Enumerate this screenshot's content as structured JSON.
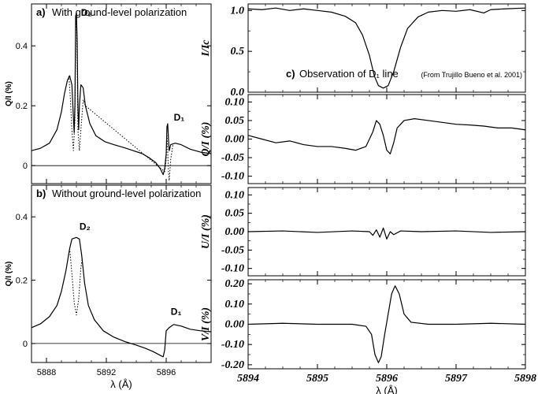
{
  "chart_data": [
    {
      "id": "a",
      "type": "line",
      "panel_label": "a)",
      "title": "With ground-level polarization",
      "ylabel": "Q/I (%)",
      "xlim": [
        5887,
        5899
      ],
      "ylim": [
        -0.06,
        0.54
      ],
      "yticks": [
        {
          "v": 0,
          "label": "0"
        },
        {
          "v": 0.2,
          "label": "0.2"
        },
        {
          "v": 0.4,
          "label": "0.4"
        }
      ],
      "xticks": [
        5888,
        5892,
        5896
      ],
      "zero_line": true,
      "line_labels": [
        {
          "text": "D₂",
          "x": 5890.2,
          "y": 0.5
        },
        {
          "text": "D₁",
          "x": 5896.4,
          "y": 0.15
        }
      ],
      "series": [
        {
          "style": "solid",
          "points": [
            [
              5887,
              0.05
            ],
            [
              5887.6,
              0.058
            ],
            [
              5888.2,
              0.075
            ],
            [
              5888.7,
              0.12
            ],
            [
              5889.0,
              0.18
            ],
            [
              5889.2,
              0.24
            ],
            [
              5889.4,
              0.285
            ],
            [
              5889.55,
              0.3
            ],
            [
              5889.7,
              0.27
            ],
            [
              5889.8,
              0.16
            ],
            [
              5889.85,
              0.11
            ],
            [
              5889.9,
              0.2
            ],
            [
              5889.95,
              0.5
            ],
            [
              5890.0,
              0.51
            ],
            [
              5890.05,
              0.42
            ],
            [
              5890.1,
              0.2
            ],
            [
              5890.15,
              0.12
            ],
            [
              5890.2,
              0.2
            ],
            [
              5890.3,
              0.27
            ],
            [
              5890.45,
              0.26
            ],
            [
              5890.6,
              0.2
            ],
            [
              5890.9,
              0.14
            ],
            [
              5891.3,
              0.1
            ],
            [
              5891.9,
              0.08
            ],
            [
              5892.5,
              0.07
            ],
            [
              5893.2,
              0.06
            ],
            [
              5893.8,
              0.05
            ],
            [
              5894.4,
              0.04
            ],
            [
              5894.9,
              0.025
            ],
            [
              5895.3,
              0.01
            ],
            [
              5895.6,
              -0.01
            ],
            [
              5895.8,
              -0.03
            ],
            [
              5895.9,
              -0.01
            ],
            [
              5896.0,
              0.04
            ],
            [
              5896.05,
              0.13
            ],
            [
              5896.1,
              0.14
            ],
            [
              5896.15,
              0.09
            ],
            [
              5896.2,
              0.05
            ],
            [
              5896.3,
              0.07
            ],
            [
              5896.6,
              0.075
            ],
            [
              5897.0,
              0.07
            ],
            [
              5897.6,
              0.055
            ],
            [
              5898.3,
              0.045
            ],
            [
              5899,
              0.04
            ]
          ]
        },
        {
          "style": "dotted",
          "points": [
            [
              5889.5,
              0.3
            ],
            [
              5889.6,
              0.22
            ],
            [
              5889.7,
              0.12
            ],
            [
              5889.8,
              0.05
            ],
            [
              5889.9,
              0.15
            ],
            [
              5889.95,
              0.45
            ],
            [
              5890.0,
              0.5
            ],
            [
              5890.05,
              0.35
            ],
            [
              5890.1,
              0.12
            ],
            [
              5890.2,
              0.05
            ],
            [
              5890.3,
              0.12
            ],
            [
              5890.45,
              0.22
            ],
            [
              5890.6,
              0.2
            ],
            [
              5895.9,
              -0.02
            ],
            [
              5896.0,
              0.02
            ],
            [
              5896.05,
              0.1
            ],
            [
              5896.1,
              0.05
            ],
            [
              5896.15,
              -0.02
            ],
            [
              5896.2,
              -0.05
            ],
            [
              5896.3,
              0.02
            ],
            [
              5896.45,
              0.07
            ]
          ]
        }
      ]
    },
    {
      "id": "b",
      "type": "line",
      "panel_label": "b)",
      "title": "Without ground-level polarization",
      "ylabel": "Q/I (%)",
      "xlabel": "λ (Å)",
      "xlim": [
        5887,
        5899
      ],
      "ylim": [
        -0.06,
        0.5
      ],
      "yticks": [
        {
          "v": 0,
          "label": "0"
        },
        {
          "v": 0.2,
          "label": "0.2"
        },
        {
          "v": 0.4,
          "label": "0.4"
        }
      ],
      "xticks": [
        5888,
        5892,
        5896
      ],
      "zero_line": true,
      "line_labels": [
        {
          "text": "D₂",
          "x": 5890.1,
          "y": 0.36
        },
        {
          "text": "D₁",
          "x": 5896.2,
          "y": 0.09
        }
      ],
      "series": [
        {
          "style": "solid",
          "points": [
            [
              5887,
              0.05
            ],
            [
              5887.6,
              0.062
            ],
            [
              5888.2,
              0.085
            ],
            [
              5888.7,
              0.12
            ],
            [
              5889.0,
              0.165
            ],
            [
              5889.3,
              0.23
            ],
            [
              5889.55,
              0.3
            ],
            [
              5889.7,
              0.33
            ],
            [
              5890.0,
              0.335
            ],
            [
              5890.2,
              0.33
            ],
            [
              5890.35,
              0.28
            ],
            [
              5890.55,
              0.19
            ],
            [
              5890.8,
              0.12
            ],
            [
              5891.2,
              0.075
            ],
            [
              5891.8,
              0.04
            ],
            [
              5892.5,
              0.02
            ],
            [
              5893.3,
              0.005
            ],
            [
              5894.0,
              -0.005
            ],
            [
              5894.6,
              -0.015
            ],
            [
              5895.1,
              -0.025
            ],
            [
              5895.5,
              -0.035
            ],
            [
              5895.7,
              -0.04
            ],
            [
              5895.8,
              -0.042
            ],
            [
              5895.9,
              -0.02
            ],
            [
              5896.0,
              0.04
            ],
            [
              5896.2,
              0.05
            ],
            [
              5896.5,
              0.06
            ],
            [
              5897.0,
              0.055
            ],
            [
              5897.6,
              0.045
            ],
            [
              5898.3,
              0.04
            ],
            [
              5899,
              0.037
            ]
          ]
        },
        {
          "style": "dotted",
          "points": [
            [
              5889.55,
              0.3
            ],
            [
              5889.7,
              0.22
            ],
            [
              5889.85,
              0.13
            ],
            [
              5890.0,
              0.09
            ],
            [
              5890.15,
              0.14
            ],
            [
              5890.3,
              0.24
            ],
            [
              5890.4,
              0.27
            ]
          ]
        }
      ]
    },
    {
      "id": "c1",
      "type": "line",
      "panel_label": "c)",
      "title": "Observation of D₁ line",
      "annotation": "(From Trujillo Bueno et al. 2001)",
      "ylabel": "I/Ic",
      "xlim": [
        5894,
        5898
      ],
      "ylim": [
        0,
        1.08
      ],
      "yticks": [
        {
          "v": 0,
          "label": "0.0"
        },
        {
          "v": 0.5,
          "label": "0.5"
        },
        {
          "v": 1.0,
          "label": "1.0"
        }
      ],
      "xticks": [
        5894,
        5895,
        5896,
        5897,
        5898
      ],
      "series": [
        {
          "style": "solid",
          "points": [
            [
              5894,
              1.02
            ],
            [
              5894.2,
              1.01
            ],
            [
              5894.4,
              1.03
            ],
            [
              5894.6,
              1.0
            ],
            [
              5894.8,
              1.02
            ],
            [
              5895.0,
              1.0
            ],
            [
              5895.2,
              0.98
            ],
            [
              5895.4,
              0.93
            ],
            [
              5895.55,
              0.85
            ],
            [
              5895.65,
              0.7
            ],
            [
              5895.75,
              0.45
            ],
            [
              5895.82,
              0.2
            ],
            [
              5895.88,
              0.08
            ],
            [
              5895.95,
              0.05
            ],
            [
              5896.02,
              0.08
            ],
            [
              5896.1,
              0.25
            ],
            [
              5896.2,
              0.55
            ],
            [
              5896.3,
              0.78
            ],
            [
              5896.45,
              0.92
            ],
            [
              5896.6,
              0.98
            ],
            [
              5896.8,
              1.0
            ],
            [
              5897.0,
              0.99
            ],
            [
              5897.2,
              1.01
            ],
            [
              5897.4,
              0.97
            ],
            [
              5897.5,
              1.01
            ],
            [
              5897.7,
              1.02
            ],
            [
              5898,
              1.03
            ]
          ]
        }
      ]
    },
    {
      "id": "c2",
      "type": "line",
      "ylabel": "Q/I (%)",
      "xlim": [
        5894,
        5898
      ],
      "ylim": [
        -0.12,
        0.12
      ],
      "yticks": [
        {
          "v": -0.1,
          "label": "-0.10"
        },
        {
          "v": -0.05,
          "label": "-0.05"
        },
        {
          "v": 0,
          "label": "0.00"
        },
        {
          "v": 0.05,
          "label": "0.05"
        },
        {
          "v": 0.1,
          "label": "0.10"
        }
      ],
      "xticks": [
        5894,
        5895,
        5896,
        5897,
        5898
      ],
      "series": [
        {
          "style": "solid",
          "points": [
            [
              5894,
              0.01
            ],
            [
              5894.2,
              0.0
            ],
            [
              5894.4,
              -0.01
            ],
            [
              5894.6,
              -0.005
            ],
            [
              5894.8,
              -0.015
            ],
            [
              5895.0,
              -0.02
            ],
            [
              5895.2,
              -0.02
            ],
            [
              5895.4,
              -0.025
            ],
            [
              5895.55,
              -0.03
            ],
            [
              5895.7,
              -0.02
            ],
            [
              5895.8,
              0.02
            ],
            [
              5895.85,
              0.05
            ],
            [
              5895.9,
              0.04
            ],
            [
              5895.95,
              0.01
            ],
            [
              5896.0,
              -0.03
            ],
            [
              5896.05,
              -0.04
            ],
            [
              5896.1,
              -0.01
            ],
            [
              5896.15,
              0.03
            ],
            [
              5896.25,
              0.05
            ],
            [
              5896.4,
              0.055
            ],
            [
              5896.6,
              0.05
            ],
            [
              5896.8,
              0.045
            ],
            [
              5897.0,
              0.04
            ],
            [
              5897.2,
              0.038
            ],
            [
              5897.4,
              0.035
            ],
            [
              5897.6,
              0.03
            ],
            [
              5897.8,
              0.03
            ],
            [
              5898,
              0.025
            ]
          ]
        }
      ]
    },
    {
      "id": "c3",
      "type": "line",
      "ylabel": "U/I (%)",
      "xlim": [
        5894,
        5898
      ],
      "ylim": [
        -0.12,
        0.12
      ],
      "yticks": [
        {
          "v": -0.1,
          "label": "-0.10"
        },
        {
          "v": -0.05,
          "label": "-0.05"
        },
        {
          "v": 0,
          "label": "0.00"
        },
        {
          "v": 0.05,
          "label": "0.05"
        },
        {
          "v": 0.1,
          "label": "0.10"
        }
      ],
      "xticks": [
        5894,
        5895,
        5896,
        5897,
        5898
      ],
      "series": [
        {
          "style": "solid",
          "points": [
            [
              5894,
              0.0
            ],
            [
              5894.5,
              0.002
            ],
            [
              5895.0,
              -0.002
            ],
            [
              5895.5,
              0.002
            ],
            [
              5895.75,
              0.0
            ],
            [
              5895.8,
              -0.01
            ],
            [
              5895.85,
              0.005
            ],
            [
              5895.9,
              -0.015
            ],
            [
              5895.95,
              0.01
            ],
            [
              5896.0,
              -0.02
            ],
            [
              5896.05,
              0.0
            ],
            [
              5896.1,
              -0.008
            ],
            [
              5896.2,
              0.002
            ],
            [
              5896.5,
              0.0
            ],
            [
              5897.0,
              0.002
            ],
            [
              5897.5,
              -0.002
            ],
            [
              5898,
              0.0
            ]
          ]
        }
      ]
    },
    {
      "id": "c4",
      "type": "line",
      "ylabel": "V/I (%)",
      "xlabel": "λ (Å)",
      "xlim": [
        5894,
        5898
      ],
      "ylim": [
        -0.22,
        0.22
      ],
      "yticks": [
        {
          "v": -0.2,
          "label": "-0.20"
        },
        {
          "v": -0.1,
          "label": "-0.10"
        },
        {
          "v": 0,
          "label": "0.00"
        },
        {
          "v": 0.1,
          "label": "0.10"
        },
        {
          "v": 0.2,
          "label": "0.20"
        }
      ],
      "xticks": [
        5894,
        5895,
        5896,
        5897,
        5898
      ],
      "series": [
        {
          "style": "solid",
          "points": [
            [
              5894,
              0.0
            ],
            [
              5894.5,
              0.005
            ],
            [
              5895.0,
              0.0
            ],
            [
              5895.5,
              0.0
            ],
            [
              5895.7,
              -0.01
            ],
            [
              5895.78,
              -0.05
            ],
            [
              5895.83,
              -0.15
            ],
            [
              5895.88,
              -0.19
            ],
            [
              5895.92,
              -0.16
            ],
            [
              5895.97,
              -0.05
            ],
            [
              5896.02,
              0.05
            ],
            [
              5896.07,
              0.15
            ],
            [
              5896.12,
              0.19
            ],
            [
              5896.18,
              0.15
            ],
            [
              5896.25,
              0.05
            ],
            [
              5896.35,
              0.01
            ],
            [
              5896.6,
              0.0
            ],
            [
              5897.0,
              0.0
            ],
            [
              5897.5,
              0.005
            ],
            [
              5898,
              0.0
            ]
          ]
        }
      ]
    }
  ]
}
